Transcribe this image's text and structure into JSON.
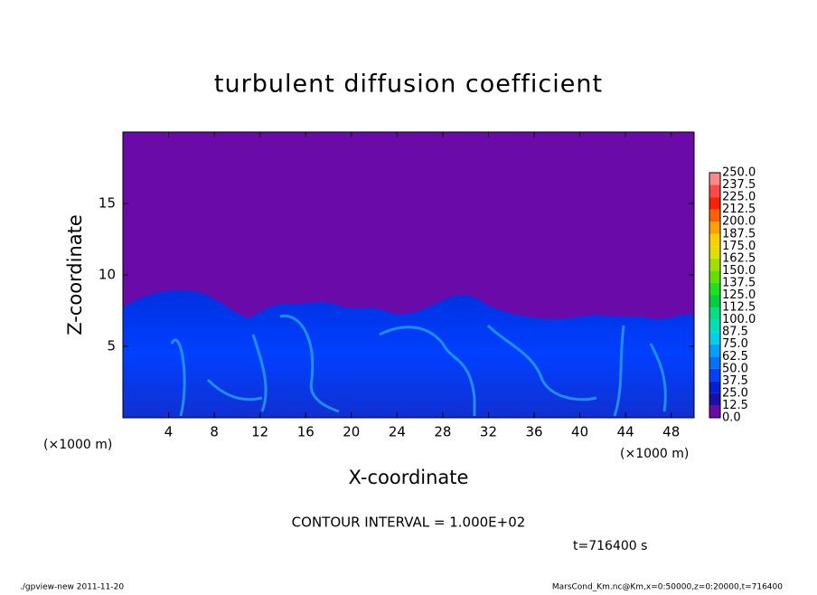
{
  "chart_data": {
    "type": "heatmap",
    "title": "turbulent diffusion coefficient",
    "x_label": "X-coordinate",
    "y_label": "Z-coordinate",
    "x_unit": "(×1000 m)",
    "x_unit_right": "(×1000 m)",
    "xlim": [
      0,
      50
    ],
    "ylim": [
      0,
      20
    ],
    "xticks": [
      4,
      8,
      12,
      16,
      20,
      24,
      28,
      32,
      36,
      40,
      44,
      48
    ],
    "yticks": [
      5,
      10,
      15
    ],
    "colorbar": {
      "levels": [
        {
          "value": 0,
          "label": "0.0"
        },
        12.5,
        {
          "value": 25,
          "label": "25.0"
        },
        37.5,
        {
          "value": 50,
          "label": "50.0"
        },
        62.5,
        {
          "value": 75,
          "label": "75.0"
        },
        87.5,
        {
          "value": 100,
          "label": "100.0"
        },
        112.5,
        {
          "value": 125,
          "label": "125.0"
        },
        137.5,
        {
          "value": 150,
          "label": "150.0"
        },
        162.5,
        {
          "value": 175,
          "label": "175.0"
        },
        187.5,
        {
          "value": 200,
          "label": "200.0"
        },
        212.5,
        {
          "value": 225,
          "label": "225.0"
        },
        237.5,
        {
          "value": 250,
          "label": "250.0"
        }
      ],
      "colors": [
        "#6a0aa8",
        "#1a10a8",
        "#0020d8",
        "#0040ff",
        "#0070ff",
        "#00a0ff",
        "#00d0e8",
        "#00e0b8",
        "#00e080",
        "#00d040",
        "#20e020",
        "#60e000",
        "#a0e000",
        "#e0e000",
        "#ffd000",
        "#ffa000",
        "#ff6000",
        "#ff2000",
        "#ff4848",
        "#ff8888"
      ]
    },
    "contour_note": "CONTOUR INTERVAL = 1.000E+02",
    "time_note": "t=716400 s",
    "footer_left": "./gpview-new  2011-11-20",
    "footer_right": "MarsCond_Km.nc@Km,x=0:50000,z=0:20000,t=716400"
  }
}
